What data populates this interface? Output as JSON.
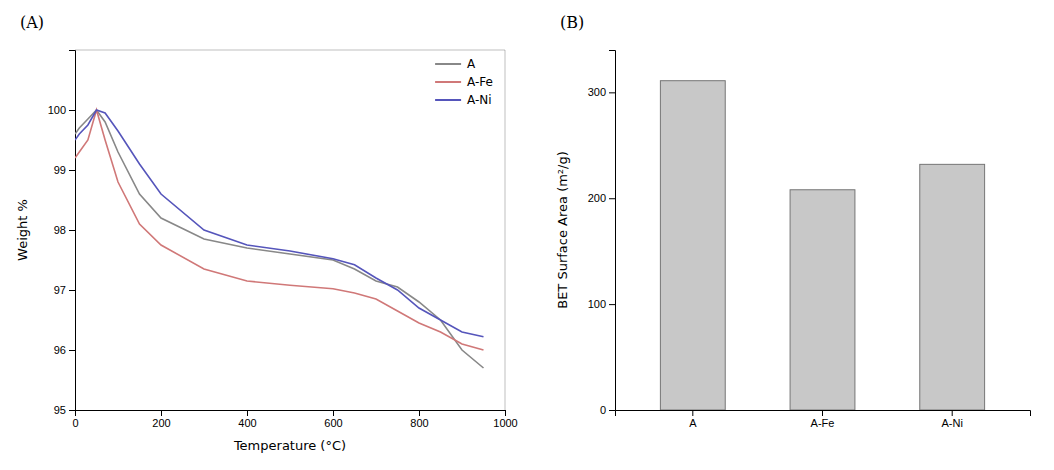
{
  "chart_data": [
    {
      "type": "line",
      "title": "(A)",
      "xlabel": "Temperature (°C)",
      "ylabel": "Weight %",
      "x": [
        0,
        10,
        30,
        50,
        70,
        100,
        150,
        200,
        300,
        400,
        500,
        600,
        650,
        700,
        750,
        800,
        850,
        900,
        950
      ],
      "series": [
        {
          "name": "A",
          "color": "#888888",
          "values": [
            99.6,
            99.7,
            99.85,
            100.0,
            99.8,
            99.3,
            98.6,
            98.2,
            97.85,
            97.7,
            97.6,
            97.5,
            97.35,
            97.15,
            97.05,
            96.8,
            96.5,
            96.0,
            95.7
          ]
        },
        {
          "name": "A-Fe",
          "color": "#d07878",
          "values": [
            99.2,
            99.3,
            99.5,
            100.0,
            99.5,
            98.8,
            98.1,
            97.75,
            97.35,
            97.15,
            97.08,
            97.02,
            96.95,
            96.85,
            96.65,
            96.45,
            96.3,
            96.1,
            96.0
          ]
        },
        {
          "name": "A-Ni",
          "color": "#5555bb",
          "values": [
            99.5,
            99.6,
            99.75,
            100.0,
            99.95,
            99.65,
            99.1,
            98.6,
            98.0,
            97.75,
            97.65,
            97.52,
            97.42,
            97.2,
            97.0,
            96.7,
            96.5,
            96.3,
            96.22
          ]
        }
      ],
      "xlim": [
        0,
        1000
      ],
      "ylim": [
        95,
        101
      ],
      "xticks": [
        0,
        200,
        400,
        600,
        800,
        1000
      ],
      "yticks": [
        95,
        96,
        97,
        98,
        99,
        100
      ],
      "legend": "upper right",
      "grid": false
    },
    {
      "type": "bar",
      "title": "(B)",
      "ylabel": "BET Surface Area (m²/g)",
      "categories": [
        "A",
        "A-Fe",
        "A-Ni"
      ],
      "values": [
        311,
        208,
        232
      ],
      "color": "#c8c8c8",
      "ylim": [
        0,
        340
      ],
      "yticks": [
        0,
        100,
        200,
        300
      ],
      "grid": false
    }
  ]
}
